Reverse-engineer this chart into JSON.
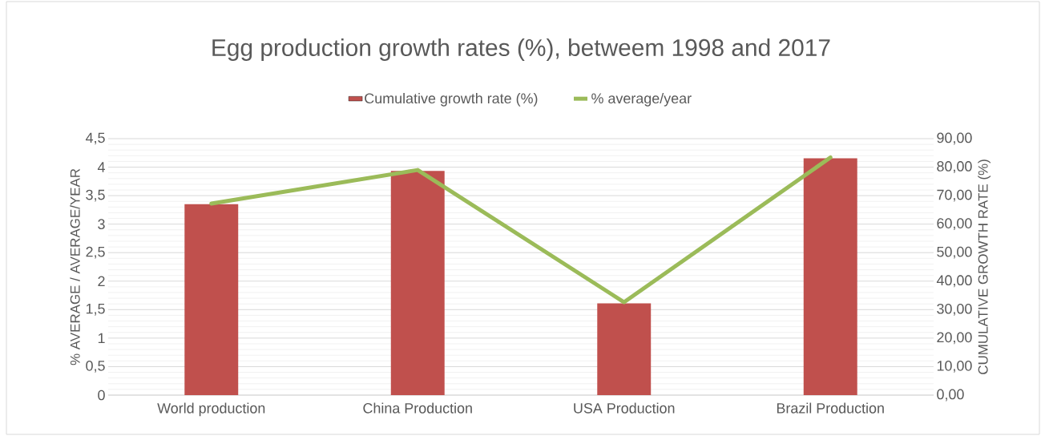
{
  "chart_data": {
    "type": "bar",
    "title": "Egg production growth rates (%), betweem 1998 and 2017",
    "categories": [
      "World production",
      "China Production",
      "USA Production",
      "Brazil Production"
    ],
    "series": [
      {
        "name": "Cumulative growth rate (%)",
        "axis": "y2",
        "color": "#c0504d",
        "values": [
          67.0,
          78.7,
          32.2,
          83.1
        ]
      },
      {
        "name": "% average/year",
        "type": "line",
        "color": "#9bbb59",
        "values": [
          3.36,
          3.95,
          1.63,
          4.17
        ]
      }
    ],
    "ylabel": "% AVERAGE / AVERAGE/YEAR",
    "y2label": "CUMULATIVE GROWTH RATE (%)",
    "ylim": [
      0,
      4.5
    ],
    "yticks": [
      0,
      {
        "value": 0.5,
        "label": "0,5"
      },
      1,
      {
        "value": 1.5,
        "label": "1,5"
      },
      2,
      {
        "value": 2.5,
        "label": "2,5"
      },
      3,
      {
        "value": 3.5,
        "label": "3,5"
      },
      4,
      {
        "value": 4.5,
        "label": "4,5"
      }
    ],
    "y2lim": [
      0,
      90
    ],
    "y2ticks": [
      {
        "value": 0,
        "label": "0,00"
      },
      {
        "value": 10,
        "label": "10,00"
      },
      {
        "value": 20,
        "label": "20,00"
      },
      {
        "value": 30,
        "label": "30,00"
      },
      {
        "value": 40,
        "label": "40,00"
      },
      {
        "value": 50,
        "label": "50,00"
      },
      {
        "value": 60,
        "label": "60,00"
      },
      {
        "value": 70,
        "label": "70,00"
      },
      {
        "value": 80,
        "label": "80,00"
      },
      {
        "value": 90,
        "label": "90,00"
      }
    ],
    "grid": "y",
    "legend": "top",
    "marker": "none",
    "line_style": "solid"
  }
}
